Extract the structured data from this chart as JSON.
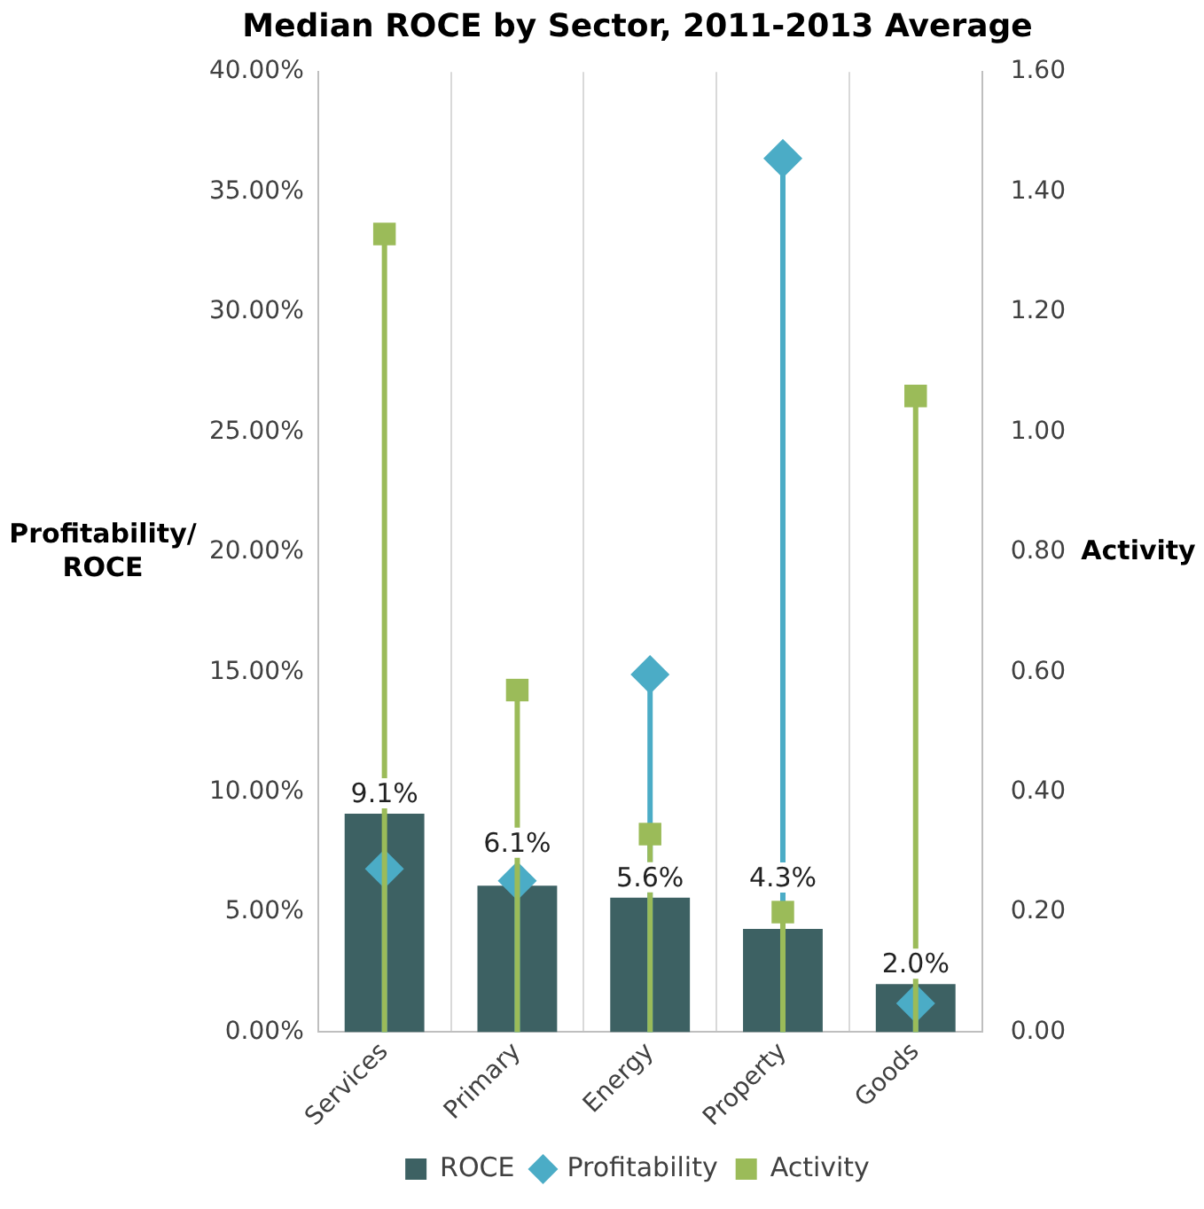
{
  "chart_data": {
    "type": "bar",
    "title": "Median ROCE by Sector, 2011-2013 Average",
    "ylabel": "Profitability/ ROCE",
    "y2label": "Activity",
    "categories": [
      "Services",
      "Primary",
      "Energy",
      "Property",
      "Goods"
    ],
    "series": [
      {
        "name": "ROCE",
        "type": "bar",
        "color": "#3d6163",
        "values": [
          9.1,
          6.1,
          5.6,
          4.3,
          2.0
        ],
        "value_labels": [
          "9.1%",
          "6.1%",
          "5.6%",
          "4.3%",
          "2.0%"
        ]
      },
      {
        "name": "Profitability",
        "type": "lollipop",
        "marker": "diamond",
        "color": "#4bacc6",
        "values": [
          6.8,
          6.3,
          14.9,
          36.4,
          1.2
        ]
      },
      {
        "name": "Activity",
        "type": "lollipop",
        "marker": "square",
        "axis": "y2",
        "color": "#9bbb59",
        "values": [
          1.33,
          0.57,
          0.33,
          0.2,
          1.06
        ]
      }
    ],
    "ylim": [
      0,
      40
    ],
    "yticks": [
      {
        "value": 0,
        "label": "0.00%"
      },
      {
        "value": 5,
        "label": "5.00%"
      },
      {
        "value": 10,
        "label": "10.00%"
      },
      {
        "value": 15,
        "label": "15.00%"
      },
      {
        "value": 20,
        "label": "20.00%"
      },
      {
        "value": 25,
        "label": "25.00%"
      },
      {
        "value": 30,
        "label": "30.00%"
      },
      {
        "value": 35,
        "label": "35.00%"
      },
      {
        "value": 40,
        "label": "40.00%"
      }
    ],
    "y2lim": [
      0,
      1.6
    ],
    "y2ticks": [
      {
        "value": 0,
        "label": "0.00"
      },
      {
        "value": 0.2,
        "label": "0.20"
      },
      {
        "value": 0.4,
        "label": "0.40"
      },
      {
        "value": 0.6,
        "label": "0.60"
      },
      {
        "value": 0.8,
        "label": "0.80"
      },
      {
        "value": 1.0,
        "label": "1.00"
      },
      {
        "value": 1.2,
        "label": "1.20"
      },
      {
        "value": 1.4,
        "label": "1.40"
      },
      {
        "value": 1.6,
        "label": "1.60"
      }
    ],
    "grid": "x",
    "legend": "bottom"
  }
}
